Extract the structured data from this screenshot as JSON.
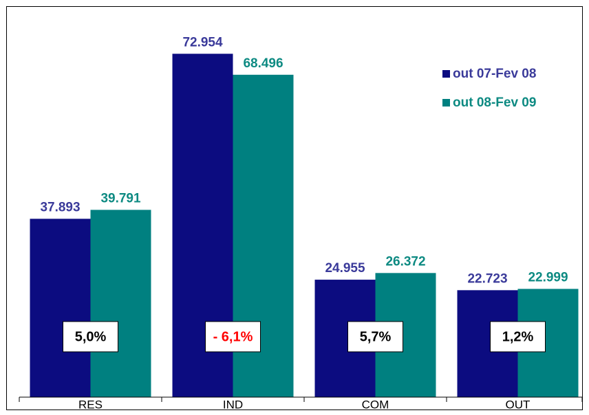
{
  "chart_data": {
    "type": "bar",
    "categories": [
      "RES",
      "IND",
      "COM",
      "OUT"
    ],
    "series": [
      {
        "name": "out 07-Fev 08",
        "color": "#0c0c80",
        "label_color": "#3a3a9a",
        "values": [
          37893,
          72954,
          24955,
          22723
        ],
        "value_labels": [
          "37.893",
          "72.954",
          "24.955",
          "22.723"
        ]
      },
      {
        "name": "out 08-Fev 09",
        "color": "#008080",
        "label_color": "#0d8a82",
        "values": [
          39791,
          68496,
          26372,
          22999
        ],
        "value_labels": [
          "39.791",
          "68.496",
          "26.372",
          "22.999"
        ]
      }
    ],
    "annotations": [
      {
        "text": "5,0%",
        "color": "#000000"
      },
      {
        "text": "- 6,1%",
        "color": "#ff0000"
      },
      {
        "text": "5,7%",
        "color": "#000000"
      },
      {
        "text": "1,2%",
        "color": "#000000"
      }
    ],
    "ylim": [
      0,
      80000
    ],
    "legend": "top-right"
  }
}
